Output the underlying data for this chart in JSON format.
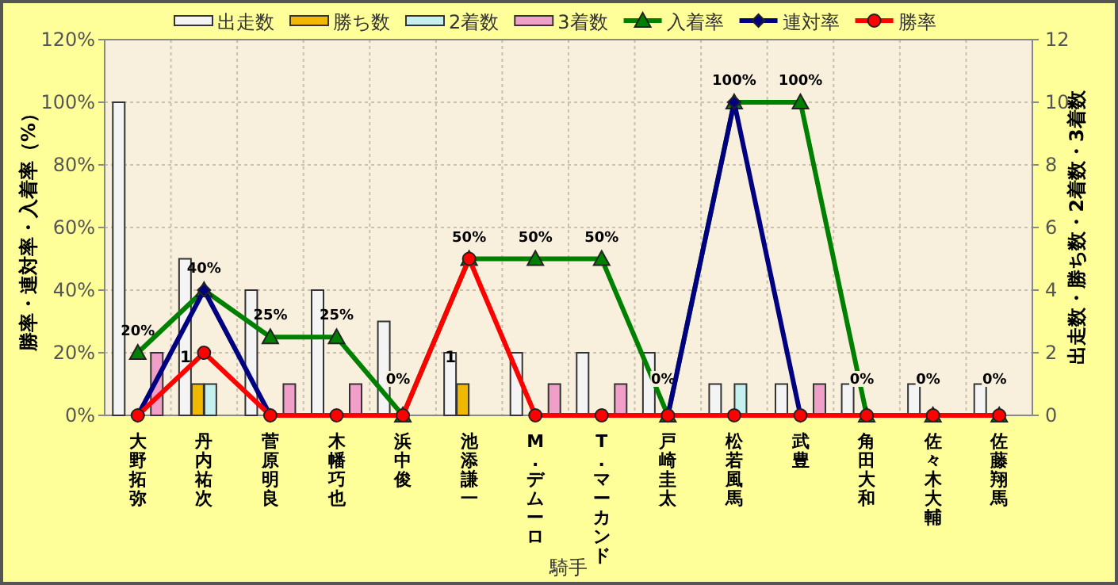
{
  "chart_data": {
    "type": "bar",
    "xlabel": "騎手",
    "ylabel": "勝率・連対率・入着率（%）",
    "y2label": "出走数・勝ち数・2着数・3着数",
    "categories": [
      "大野拓弥",
      "丹内祐次",
      "菅原明良",
      "木幡巧也",
      "浜中俊",
      "池添謙一",
      "M.デムーロ",
      "T.マーカンド",
      "戸崎圭太",
      "松若風馬",
      "武豊",
      "角田大和",
      "佐々木大輔",
      "佐藤翔馬"
    ],
    "series": [
      {
        "name": "出走数",
        "type": "bar",
        "axis": "y2",
        "color": "#f4f4f4",
        "values": [
          10,
          5,
          4,
          4,
          3,
          2,
          2,
          2,
          2,
          1,
          1,
          1,
          1,
          1
        ]
      },
      {
        "name": "勝ち数",
        "axis": "y2",
        "color": "#f0b800",
        "values": [
          0,
          1,
          0,
          0,
          0,
          1,
          0,
          0,
          0,
          0,
          0,
          0,
          0,
          0
        ],
        "value_labels": [
          null,
          "1",
          null,
          null,
          null,
          "1",
          null,
          null,
          null,
          null,
          null,
          null,
          null,
          null
        ]
      },
      {
        "name": "2着数",
        "axis": "y2",
        "color": "#c4f0f0",
        "values": [
          0,
          1,
          0,
          0,
          0,
          0,
          0,
          0,
          0,
          1,
          0,
          0,
          0,
          0
        ]
      },
      {
        "name": "3着数",
        "axis": "y2",
        "color": "#f0a0c8",
        "values": [
          2,
          0,
          1,
          1,
          0,
          0,
          1,
          1,
          0,
          0,
          1,
          0,
          0,
          0
        ]
      },
      {
        "name": "入着率",
        "type": "line",
        "marker": "triangle",
        "color": "#008000",
        "values": [
          20,
          40,
          25,
          25,
          0,
          50,
          50,
          50,
          0,
          100,
          100,
          0,
          0,
          0
        ],
        "value_labels": [
          "20%",
          "40%",
          "25%",
          "25%",
          "0%",
          "50%",
          "50%",
          "50%",
          "0%",
          "100%",
          "100%",
          "0%",
          "0%",
          "0%"
        ]
      },
      {
        "name": "連対率",
        "type": "line",
        "marker": "diamond",
        "color": "#000080",
        "values": [
          0,
          40,
          0,
          null,
          null,
          null,
          null,
          null,
          0,
          100,
          0,
          null,
          null,
          null
        ]
      },
      {
        "name": "勝率",
        "type": "line",
        "marker": "circle",
        "color": "#ff0000",
        "values": [
          0,
          20,
          0,
          0,
          0,
          50,
          0,
          0,
          0,
          0,
          0,
          0,
          0,
          0
        ]
      }
    ],
    "ylim": [
      0,
      120
    ],
    "yticks": [
      {
        "value": 0,
        "label": "0%"
      },
      {
        "value": 20,
        "label": "20%"
      },
      {
        "value": 40,
        "label": "40%"
      },
      {
        "value": 60,
        "label": "60%"
      },
      {
        "value": 80,
        "label": "80%"
      },
      {
        "value": 100,
        "label": "100%"
      },
      {
        "value": 120,
        "label": "120%"
      }
    ],
    "y2lim": [
      0,
      12
    ],
    "y2ticks": [
      0,
      2,
      4,
      6,
      8,
      10,
      12
    ],
    "grid": true,
    "legend": "top"
  }
}
